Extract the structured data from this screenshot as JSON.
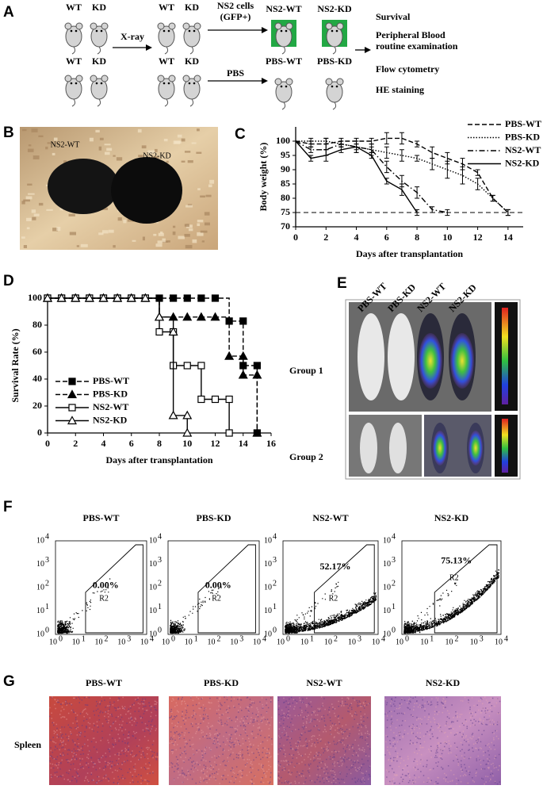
{
  "panel_labels": [
    "A",
    "B",
    "C",
    "D",
    "E",
    "F",
    "G"
  ],
  "panel_a": {
    "row1_genotypes": [
      "WT",
      "KD",
      "WT",
      "KD"
    ],
    "row2_genotypes": [
      "WT",
      "KD",
      "WT",
      "KD"
    ],
    "xray": "X-ray",
    "ns2_cells": [
      "NS2 cells",
      "(GFP+)"
    ],
    "ns2_groups": [
      "NS2-WT",
      "NS2-KD"
    ],
    "pbs": "PBS",
    "pbs_groups": [
      "PBS-WT",
      "PBS-KD"
    ],
    "readouts": [
      "Survival",
      "Peripheral Blood",
      "routine examination",
      "Flow cytometry",
      "HE staining"
    ]
  },
  "panel_b": {
    "labels": [
      "NS2-WT",
      "NS2-KD"
    ]
  },
  "chart_data": [
    {
      "type": "line",
      "x_label": "Days after transplantation",
      "y_label": "Body weight (%)",
      "x": [
        0,
        1,
        2,
        3,
        4,
        5,
        6,
        7,
        8,
        9,
        10,
        11,
        12,
        13,
        14
      ],
      "xlim": [
        0,
        15
      ],
      "xticks": [
        0,
        2,
        4,
        6,
        8,
        10,
        12,
        14
      ],
      "ylim": [
        70,
        105
      ],
      "yticks": [
        70,
        75,
        80,
        85,
        90,
        95,
        100
      ],
      "reference_line": 75,
      "legend": "upper right",
      "series": [
        {
          "name": "PBS-WT",
          "color": "#000000",
          "linestyle": "dashed",
          "values": [
            100,
            99,
            99,
            100,
            100,
            100,
            101,
            101,
            99,
            96,
            94,
            92,
            89,
            80,
            75
          ],
          "errors": [
            0,
            1,
            2,
            1,
            1,
            1,
            2,
            2,
            1,
            2,
            2,
            2,
            1,
            1,
            1
          ]
        },
        {
          "name": "PBS-KD",
          "color": "#000000",
          "linestyle": "dotted",
          "values": [
            100,
            100,
            100,
            99,
            98,
            97,
            96,
            95,
            94,
            92,
            90,
            88,
            85,
            80,
            75
          ],
          "errors": [
            0,
            1,
            1,
            1,
            1,
            1,
            2,
            2,
            1,
            2,
            3,
            3,
            2,
            1,
            1
          ]
        },
        {
          "name": "NS2-WT",
          "color": "#000000",
          "linestyle": "dashdot",
          "values": [
            100,
            97,
            97,
            99,
            98,
            97,
            91,
            86,
            82,
            76,
            75,
            null,
            null,
            null,
            null
          ],
          "errors": [
            0,
            1,
            2,
            1,
            2,
            2,
            2,
            2,
            2,
            1,
            1,
            null,
            null,
            null,
            null
          ]
        },
        {
          "name": "NS2-KD",
          "color": "#000000",
          "linestyle": "solid",
          "values": [
            100,
            94,
            95,
            97,
            98,
            95,
            86,
            83,
            75,
            null,
            null,
            null,
            null,
            null,
            null
          ],
          "errors": [
            0,
            1,
            2,
            1,
            2,
            1,
            1,
            2,
            1,
            null,
            null,
            null,
            null,
            null,
            null
          ]
        }
      ]
    },
    {
      "type": "line",
      "step": true,
      "x_label": "Days after transplantation",
      "y_label": "Survival Rate (%)",
      "xlim": [
        0,
        16
      ],
      "xticks": [
        0,
        2,
        4,
        6,
        8,
        10,
        12,
        14,
        16
      ],
      "ylim": [
        0,
        100
      ],
      "yticks": [
        0,
        20,
        40,
        60,
        80,
        100
      ],
      "legend": "lower left",
      "series": [
        {
          "name": "PBS-WT",
          "color": "#000000",
          "linestyle": "dashed",
          "marker": "square-filled",
          "x": [
            0,
            1,
            2,
            3,
            4,
            5,
            6,
            7,
            8,
            9,
            10,
            11,
            12,
            13,
            14,
            14,
            15,
            15
          ],
          "values": [
            100,
            100,
            100,
            100,
            100,
            100,
            100,
            100,
            100,
            100,
            100,
            100,
            100,
            83,
            83,
            50,
            50,
            0
          ]
        },
        {
          "name": "PBS-KD",
          "color": "#000000",
          "linestyle": "dashed",
          "marker": "triangle-filled",
          "x": [
            0,
            1,
            2,
            3,
            4,
            5,
            6,
            7,
            8,
            9,
            10,
            11,
            12,
            13,
            14,
            14,
            15,
            15
          ],
          "values": [
            100,
            100,
            100,
            100,
            100,
            100,
            100,
            100,
            86,
            86,
            86,
            86,
            86,
            57,
            57,
            43,
            43,
            0
          ]
        },
        {
          "name": "NS2-WT",
          "color": "#000000",
          "linestyle": "solid",
          "marker": "square-open",
          "x": [
            0,
            1,
            2,
            3,
            4,
            5,
            6,
            7,
            8,
            9,
            9,
            10,
            11,
            11,
            12,
            13,
            13
          ],
          "values": [
            100,
            100,
            100,
            100,
            100,
            100,
            100,
            100,
            75,
            75,
            50,
            50,
            50,
            25,
            25,
            25,
            0
          ]
        },
        {
          "name": "NS2-KD",
          "color": "#000000",
          "linestyle": "solid",
          "marker": "triangle-open",
          "x": [
            0,
            1,
            2,
            3,
            4,
            5,
            6,
            7,
            8,
            9,
            9,
            10,
            10
          ],
          "values": [
            100,
            100,
            100,
            100,
            100,
            100,
            100,
            100,
            86,
            75,
            13,
            13,
            0
          ]
        }
      ]
    }
  ],
  "panel_e": {
    "columns": [
      "PBS-WT",
      "PBS-KD",
      "NS2-WT",
      "NS2-KD"
    ],
    "groups": [
      "Group 1",
      "Group 2"
    ]
  },
  "panel_f": {
    "samples": [
      "PBS-WT",
      "PBS-KD",
      "NS2-WT",
      "NS2-KD"
    ],
    "gate_percents": [
      "0.00%",
      "0.00%",
      "52.17%",
      "75.13%"
    ],
    "gates": [
      "R2",
      "R2",
      "R2",
      "R2"
    ],
    "tick_base": "10",
    "tick_exponents": [
      "0",
      "1",
      "2",
      "3",
      "4"
    ]
  },
  "panel_g": {
    "columns": [
      "PBS-WT",
      "PBS-KD",
      "NS2-WT",
      "NS2-KD"
    ],
    "tissue": "Spleen"
  }
}
